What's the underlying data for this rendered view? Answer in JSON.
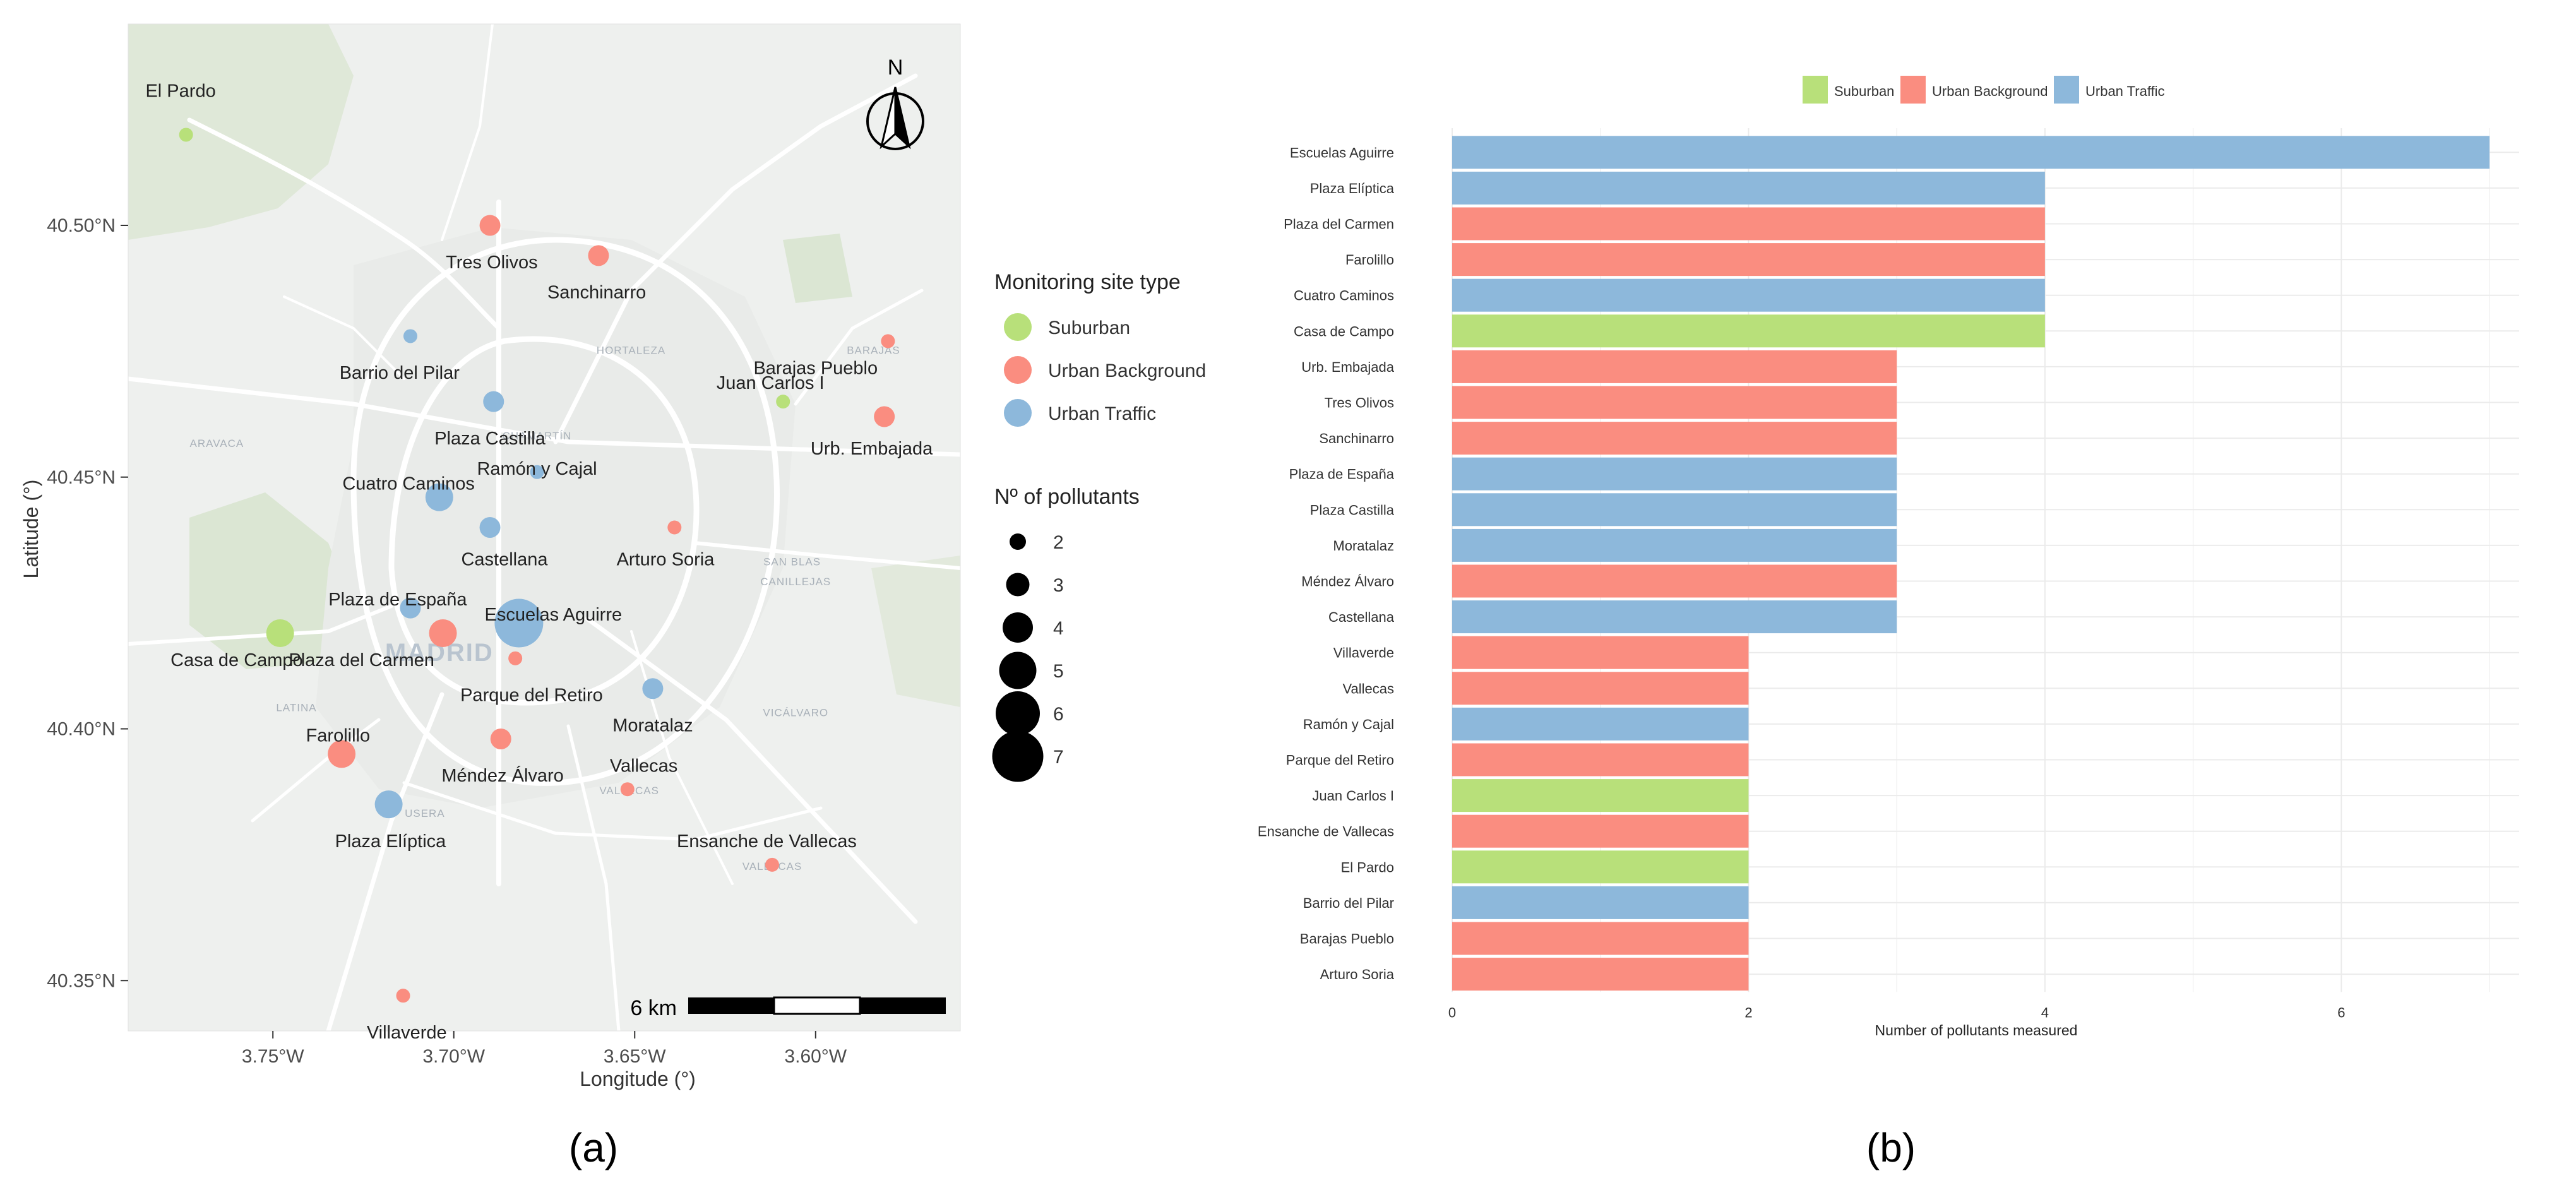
{
  "panel_labels": {
    "a": "(a)",
    "b": "(b)"
  },
  "colors": {
    "suburban": "#b8e07a",
    "urban_background": "#fa8d80",
    "urban_traffic": "#8db8db",
    "map_bg": "#eef0ee",
    "map_green": "#dde6d6",
    "road": "#ffffff",
    "grid": "#ebebeb"
  },
  "map": {
    "xlabel": "Longitude (°)",
    "ylabel": "Latitude (°)",
    "xlim": [
      -3.79,
      -3.56
    ],
    "ylim": [
      40.34,
      40.54
    ],
    "x_ticks": [
      {
        "v": -3.75,
        "label": "3.75°W"
      },
      {
        "v": -3.7,
        "label": "3.70°W"
      },
      {
        "v": -3.65,
        "label": "3.65°W"
      },
      {
        "v": -3.6,
        "label": "3.60°W"
      }
    ],
    "y_ticks": [
      {
        "v": 40.35,
        "label": "40.35°N"
      },
      {
        "v": 40.4,
        "label": "40.40°N"
      },
      {
        "v": 40.45,
        "label": "40.45°N"
      },
      {
        "v": 40.5,
        "label": "40.50°N"
      }
    ],
    "north_label": "N",
    "scale_label": "6 km",
    "city_label": "MADRID",
    "basemap_labels": [
      {
        "text": "HORTALEZA",
        "lon": -3.651,
        "lat": 40.4745
      },
      {
        "text": "BARAJAS",
        "lon": -3.584,
        "lat": 40.4745
      },
      {
        "text": "CHAMARTÍN",
        "lon": -3.677,
        "lat": 40.4575
      },
      {
        "text": "ARAVACA",
        "lon": -3.7655,
        "lat": 40.456
      },
      {
        "text": "SAN BLAS",
        "lon": -3.6065,
        "lat": 40.4325
      },
      {
        "text": "CANILLEJAS",
        "lon": -3.6055,
        "lat": 40.4285
      },
      {
        "text": "LATINA",
        "lon": -3.7435,
        "lat": 40.4035
      },
      {
        "text": "USERA",
        "lon": -3.708,
        "lat": 40.3825
      },
      {
        "text": "VICÁLVARO",
        "lon": -3.6055,
        "lat": 40.4025
      },
      {
        "text": "VALLECAS",
        "lon": -3.6515,
        "lat": 40.387
      },
      {
        "text": "VALLECAS",
        "lon": -3.612,
        "lat": 40.372
      }
    ],
    "stations": [
      {
        "name": "El Pardo",
        "type": "Suburban",
        "n": 2,
        "lon": -3.774,
        "lat": 40.518,
        "lab_lon": -3.7755,
        "lab_lat": 40.5255,
        "anchor": "middle"
      },
      {
        "name": "Tres Olivos",
        "type": "Urban Background",
        "n": 3,
        "lon": -3.69,
        "lat": 40.5,
        "lab_lon": -3.6895,
        "lab_lat": 40.4915,
        "anchor": "middle"
      },
      {
        "name": "Sanchinarro",
        "type": "Urban Background",
        "n": 3,
        "lon": -3.66,
        "lat": 40.494,
        "lab_lon": -3.6605,
        "lab_lat": 40.4855,
        "anchor": "middle"
      },
      {
        "name": "Barrio del Pilar",
        "type": "Urban Traffic",
        "n": 2,
        "lon": -3.712,
        "lat": 40.478,
        "lab_lon": -3.715,
        "lab_lat": 40.4695,
        "anchor": "middle"
      },
      {
        "name": "Barajas Pueblo",
        "type": "Urban Background",
        "n": 2,
        "lon": -3.58,
        "lat": 40.477,
        "lab_lon": -3.6,
        "lab_lat": 40.4705,
        "anchor": "middle"
      },
      {
        "name": "Juan Carlos I",
        "type": "Suburban",
        "n": 2,
        "lon": -3.609,
        "lat": 40.465,
        "lab_lon": -3.6125,
        "lab_lat": 40.4675,
        "anchor": "middle"
      },
      {
        "name": "Urb. Embajada",
        "type": "Urban Background",
        "n": 3,
        "lon": -3.581,
        "lat": 40.462,
        "lab_lon": -3.5845,
        "lab_lat": 40.4545,
        "anchor": "middle"
      },
      {
        "name": "Plaza Castilla",
        "type": "Urban Traffic",
        "n": 3,
        "lon": -3.689,
        "lat": 40.465,
        "lab_lon": -3.69,
        "lab_lat": 40.4565,
        "anchor": "middle"
      },
      {
        "name": "Ramón y Cajal",
        "type": "Urban Traffic",
        "n": 2,
        "lon": -3.677,
        "lat": 40.451,
        "lab_lon": -3.677,
        "lab_lat": 40.4505,
        "anchor": "middle"
      },
      {
        "name": "Cuatro Caminos",
        "type": "Urban Traffic",
        "n": 4,
        "lon": -3.704,
        "lat": 40.446,
        "lab_lon": -3.7125,
        "lab_lat": 40.4475,
        "anchor": "middle"
      },
      {
        "name": "Castellana",
        "type": "Urban Traffic",
        "n": 3,
        "lon": -3.69,
        "lat": 40.44,
        "lab_lon": -3.686,
        "lab_lat": 40.4325,
        "anchor": "middle"
      },
      {
        "name": "Arturo Soria",
        "type": "Urban Background",
        "n": 2,
        "lon": -3.639,
        "lat": 40.44,
        "lab_lon": -3.6415,
        "lab_lat": 40.4325,
        "anchor": "middle"
      },
      {
        "name": "Plaza de España",
        "type": "Urban Traffic",
        "n": 3,
        "lon": -3.712,
        "lat": 40.424,
        "lab_lon": -3.7155,
        "lab_lat": 40.4245,
        "anchor": "middle"
      },
      {
        "name": "Escuelas Aguirre",
        "type": "Urban Traffic",
        "n": 7,
        "lon": -3.682,
        "lat": 40.421,
        "lab_lon": -3.6725,
        "lab_lat": 40.4215,
        "anchor": "middle"
      },
      {
        "name": "Plaza del Carmen",
        "type": "Urban Background",
        "n": 4,
        "lon": -3.703,
        "lat": 40.419,
        "lab_lon": -3.7255,
        "lab_lat": 40.4125,
        "anchor": "middle"
      },
      {
        "name": "Casa de Campo",
        "type": "Suburban",
        "n": 4,
        "lon": -3.748,
        "lat": 40.419,
        "lab_lon": -3.76,
        "lab_lat": 40.4125,
        "anchor": "middle"
      },
      {
        "name": "Parque del Retiro",
        "type": "Urban Background",
        "n": 2,
        "lon": -3.683,
        "lat": 40.414,
        "lab_lon": -3.6785,
        "lab_lat": 40.4055,
        "anchor": "middle"
      },
      {
        "name": "Moratalaz",
        "type": "Urban Traffic",
        "n": 3,
        "lon": -3.645,
        "lat": 40.408,
        "lab_lon": -3.645,
        "lab_lat": 40.3995,
        "anchor": "middle"
      },
      {
        "name": "Farolillo",
        "type": "Urban Background",
        "n": 4,
        "lon": -3.731,
        "lat": 40.395,
        "lab_lon": -3.732,
        "lab_lat": 40.3975,
        "anchor": "middle"
      },
      {
        "name": "Méndez Álvaro",
        "type": "Urban Background",
        "n": 3,
        "lon": -3.687,
        "lat": 40.398,
        "lab_lon": -3.6865,
        "lab_lat": 40.3895,
        "anchor": "middle"
      },
      {
        "name": "Vallecas",
        "type": "Urban Background",
        "n": 2,
        "lon": -3.652,
        "lat": 40.388,
        "lab_lon": -3.6475,
        "lab_lat": 40.3915,
        "anchor": "middle"
      },
      {
        "name": "Plaza Elíptica",
        "type": "Urban Traffic",
        "n": 4,
        "lon": -3.718,
        "lat": 40.385,
        "lab_lon": -3.7175,
        "lab_lat": 40.3765,
        "anchor": "middle"
      },
      {
        "name": "Ensanche de Vallecas",
        "type": "Urban Background",
        "n": 2,
        "lon": -3.612,
        "lat": 40.373,
        "lab_lon": -3.6135,
        "lab_lat": 40.3765,
        "anchor": "middle"
      },
      {
        "name": "Villaverde",
        "type": "Urban Background",
        "n": 2,
        "lon": -3.714,
        "lat": 40.347,
        "lab_lon": -3.713,
        "lab_lat": 40.3385,
        "anchor": "middle"
      }
    ],
    "legend": {
      "type_title": "Monitoring site type",
      "types": [
        "Suburban",
        "Urban Background",
        "Urban Traffic"
      ],
      "size_title": "Nº of pollutants",
      "sizes": [
        2,
        3,
        4,
        5,
        6,
        7
      ]
    }
  },
  "chart_data": {
    "type": "bar",
    "orientation": "horizontal",
    "xlabel": "Number of pollutants measured",
    "xlim": [
      0,
      7.2
    ],
    "x_ticks": [
      0,
      2,
      4,
      6
    ],
    "legend_position": "top",
    "legend": [
      "Suburban",
      "Urban Background",
      "Urban Traffic"
    ],
    "bars": [
      {
        "name": "Escuelas Aguirre",
        "value": 7,
        "type": "Urban Traffic"
      },
      {
        "name": "Plaza Elíptica",
        "value": 4,
        "type": "Urban Traffic"
      },
      {
        "name": "Plaza del Carmen",
        "value": 4,
        "type": "Urban Background"
      },
      {
        "name": "Farolillo",
        "value": 4,
        "type": "Urban Background"
      },
      {
        "name": "Cuatro Caminos",
        "value": 4,
        "type": "Urban Traffic"
      },
      {
        "name": "Casa de Campo",
        "value": 4,
        "type": "Suburban"
      },
      {
        "name": "Urb. Embajada",
        "value": 3,
        "type": "Urban Background"
      },
      {
        "name": "Tres Olivos",
        "value": 3,
        "type": "Urban Background"
      },
      {
        "name": "Sanchinarro",
        "value": 3,
        "type": "Urban Background"
      },
      {
        "name": "Plaza de España",
        "value": 3,
        "type": "Urban Traffic"
      },
      {
        "name": "Plaza Castilla",
        "value": 3,
        "type": "Urban Traffic"
      },
      {
        "name": "Moratalaz",
        "value": 3,
        "type": "Urban Traffic"
      },
      {
        "name": "Méndez Álvaro",
        "value": 3,
        "type": "Urban Background"
      },
      {
        "name": "Castellana",
        "value": 3,
        "type": "Urban Traffic"
      },
      {
        "name": "Villaverde",
        "value": 2,
        "type": "Urban Background"
      },
      {
        "name": "Vallecas",
        "value": 2,
        "type": "Urban Background"
      },
      {
        "name": "Ramón y Cajal",
        "value": 2,
        "type": "Urban Traffic"
      },
      {
        "name": "Parque del Retiro",
        "value": 2,
        "type": "Urban Background"
      },
      {
        "name": "Juan Carlos I",
        "value": 2,
        "type": "Suburban"
      },
      {
        "name": "Ensanche de Vallecas",
        "value": 2,
        "type": "Urban Background"
      },
      {
        "name": "El Pardo",
        "value": 2,
        "type": "Suburban"
      },
      {
        "name": "Barrio del Pilar",
        "value": 2,
        "type": "Urban Traffic"
      },
      {
        "name": "Barajas Pueblo",
        "value": 2,
        "type": "Urban Background"
      },
      {
        "name": "Arturo Soria",
        "value": 2,
        "type": "Urban Background"
      }
    ]
  }
}
